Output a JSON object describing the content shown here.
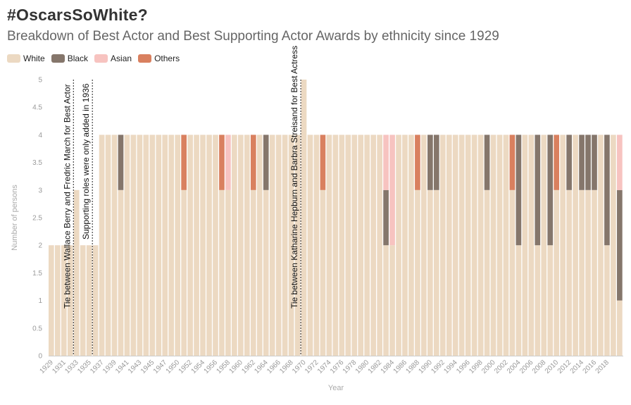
{
  "chart_data": {
    "type": "bar",
    "stacked": true,
    "title": "#OscarsSoWhite?",
    "subtitle": "Breakdown of Best Actor and Best Supporting Actor Awards by ethnicity since 1929",
    "xlabel": "Year",
    "ylabel": "Number of persons",
    "ylim": [
      0,
      5
    ],
    "y_ticks": [
      "0",
      "0.5",
      "1",
      "1.5",
      "2",
      "2.5",
      "3",
      "3.5",
      "4",
      "4.5",
      "5"
    ],
    "legend_position": "top-left",
    "series": [
      {
        "name": "White",
        "color": "#ecd9c2"
      },
      {
        "name": "Black",
        "color": "#85766b"
      },
      {
        "name": "Asian",
        "color": "#f7c3c0"
      },
      {
        "name": "Others",
        "color": "#d9805f"
      }
    ],
    "ceremony_labels": [
      "1929",
      "1931",
      "1933",
      "1935",
      "1937",
      "1939",
      "1941",
      "1943",
      "1945",
      "1947",
      "1950",
      "1952",
      "1954",
      "1956",
      "1958",
      "1960",
      "1962",
      "1964",
      "1966",
      "1968",
      "1970",
      "1972",
      "1974",
      "1976",
      "1978",
      "1980",
      "1982",
      "1984",
      "1986",
      "1988",
      "1990",
      "1992",
      "1994",
      "1996",
      "1998",
      "2000",
      "2002",
      "2004",
      "2006",
      "2008",
      "2010",
      "2012",
      "2014",
      "2016",
      "2018"
    ],
    "exceptions": [
      {
        "idx": 0,
        "stack": [
          [
            "White",
            2
          ]
        ]
      },
      {
        "idx": 1,
        "stack": [
          [
            "White",
            2
          ]
        ]
      },
      {
        "idx": 2,
        "stack": [
          [
            "White",
            2
          ]
        ]
      },
      {
        "idx": 3,
        "stack": [
          [
            "White",
            2
          ]
        ]
      },
      {
        "idx": 4,
        "stack": [
          [
            "White",
            3
          ]
        ]
      },
      {
        "idx": 5,
        "stack": [
          [
            "White",
            2
          ]
        ]
      },
      {
        "idx": 6,
        "stack": [
          [
            "White",
            2
          ]
        ]
      },
      {
        "idx": 7,
        "stack": [
          [
            "White",
            2
          ]
        ]
      },
      {
        "idx": 11,
        "stack": [
          [
            "White",
            3
          ],
          [
            "Black",
            1
          ]
        ]
      },
      {
        "idx": 21,
        "stack": [
          [
            "White",
            3
          ],
          [
            "Others",
            1
          ]
        ]
      },
      {
        "idx": 27,
        "stack": [
          [
            "White",
            3
          ],
          [
            "Others",
            1
          ]
        ]
      },
      {
        "idx": 28,
        "stack": [
          [
            "White",
            3
          ],
          [
            "Asian",
            1
          ]
        ]
      },
      {
        "idx": 32,
        "stack": [
          [
            "White",
            3
          ],
          [
            "Others",
            1
          ]
        ]
      },
      {
        "idx": 34,
        "stack": [
          [
            "White",
            3
          ],
          [
            "Black",
            1
          ]
        ]
      },
      {
        "idx": 40,
        "stack": [
          [
            "White",
            5
          ]
        ]
      },
      {
        "idx": 43,
        "stack": [
          [
            "White",
            3
          ],
          [
            "Others",
            1
          ]
        ]
      },
      {
        "idx": 53,
        "stack": [
          [
            "White",
            2
          ],
          [
            "Black",
            1
          ],
          [
            "Asian",
            1
          ]
        ]
      },
      {
        "idx": 54,
        "stack": [
          [
            "White",
            2
          ],
          [
            "Asian",
            2
          ]
        ]
      },
      {
        "idx": 58,
        "stack": [
          [
            "White",
            3
          ],
          [
            "Others",
            1
          ]
        ]
      },
      {
        "idx": 60,
        "stack": [
          [
            "White",
            3
          ],
          [
            "Black",
            1
          ]
        ]
      },
      {
        "idx": 61,
        "stack": [
          [
            "White",
            3
          ],
          [
            "Black",
            1
          ]
        ]
      },
      {
        "idx": 69,
        "stack": [
          [
            "White",
            3
          ],
          [
            "Black",
            1
          ]
        ]
      },
      {
        "idx": 73,
        "stack": [
          [
            "White",
            3
          ],
          [
            "Others",
            1
          ]
        ]
      },
      {
        "idx": 74,
        "stack": [
          [
            "White",
            2
          ],
          [
            "Black",
            2
          ]
        ]
      },
      {
        "idx": 77,
        "stack": [
          [
            "White",
            2
          ],
          [
            "Black",
            2
          ]
        ]
      },
      {
        "idx": 79,
        "stack": [
          [
            "White",
            2
          ],
          [
            "Black",
            2
          ]
        ]
      },
      {
        "idx": 80,
        "stack": [
          [
            "White",
            3
          ],
          [
            "Others",
            1
          ]
        ]
      },
      {
        "idx": 82,
        "stack": [
          [
            "White",
            3
          ],
          [
            "Black",
            1
          ]
        ]
      },
      {
        "idx": 84,
        "stack": [
          [
            "White",
            3
          ],
          [
            "Black",
            1
          ]
        ]
      },
      {
        "idx": 85,
        "stack": [
          [
            "White",
            3
          ],
          [
            "Black",
            1
          ]
        ]
      },
      {
        "idx": 86,
        "stack": [
          [
            "White",
            3
          ],
          [
            "Black",
            1
          ]
        ]
      },
      {
        "idx": 88,
        "stack": [
          [
            "White",
            2
          ],
          [
            "Black",
            2
          ]
        ]
      },
      {
        "idx": 90,
        "stack": [
          [
            "White",
            1
          ],
          [
            "Black",
            2
          ],
          [
            "Asian",
            1
          ]
        ]
      }
    ],
    "default_stack": [
      [
        "White",
        4
      ]
    ],
    "annotations": [
      {
        "text": "Tie between Wallace Berry and Fredric March for Best Actor",
        "after_index": 3
      },
      {
        "text": "Supporting roles were only added in 1936",
        "after_index": 6
      },
      {
        "text": "Tie between Katharine Hepburn and Barbra Streisand for Best Actress",
        "after_index": 39
      }
    ]
  }
}
